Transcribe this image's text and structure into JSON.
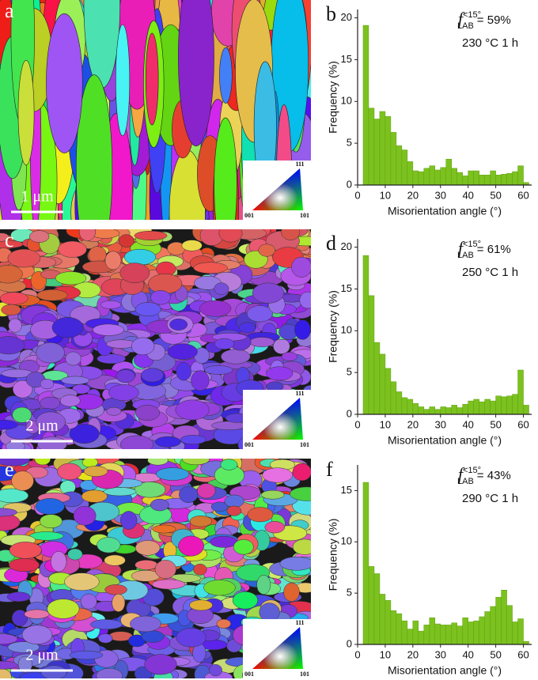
{
  "panels": [
    {
      "label": "a",
      "scale_bar": "1 μm",
      "legend": {
        "top": "111",
        "left": "001",
        "right": "101"
      }
    },
    {
      "label": "c",
      "scale_bar": "2 μm",
      "legend": {
        "top": "111",
        "left": "001",
        "right": "101"
      }
    },
    {
      "label": "e",
      "scale_bar": "2 μm",
      "legend": {
        "top": "111",
        "left": "001",
        "right": "101"
      }
    }
  ],
  "chart_data": [
    {
      "type": "histogram",
      "panel_label": "b",
      "annotation_symbol": "f",
      "annotation_sub": "LAB",
      "annotation_sup": "<15°",
      "annotation_value": "= 59%",
      "condition": "230 °C 1 h",
      "xlabel": "Misorientation angle (°)",
      "ylabel": "Frequency (%)",
      "color": "#7cc21f",
      "bins": [
        2,
        4,
        6,
        8,
        10,
        12,
        14,
        16,
        18,
        20,
        22,
        24,
        26,
        28,
        30,
        32,
        34,
        36,
        38,
        40,
        42,
        44,
        46,
        48,
        50,
        52,
        54,
        56,
        58,
        60,
        62
      ],
      "values": [
        19.1,
        9.2,
        7.9,
        8.8,
        8.2,
        6.3,
        4.7,
        4.2,
        2.8,
        1.7,
        1.6,
        2.0,
        2.3,
        1.8,
        2.1,
        3.1,
        2.0,
        1.5,
        1.1,
        1.7,
        1.7,
        1.2,
        1.2,
        1.7,
        1.2,
        1.3,
        1.4,
        1.6,
        2.3,
        0.3
      ],
      "xlim": [
        0,
        63
      ],
      "xticks": [
        0,
        10,
        20,
        30,
        40,
        50,
        60
      ],
      "ylim": [
        0,
        21
      ],
      "yticks": [
        0,
        5,
        10,
        15,
        20
      ]
    },
    {
      "type": "histogram",
      "panel_label": "d",
      "annotation_symbol": "f",
      "annotation_sub": "LAB",
      "annotation_sup": "<15°",
      "annotation_value": "= 61%",
      "condition": "250 °C 1 h",
      "xlabel": "Misorientation angle (°)",
      "ylabel": "Frequency (%)",
      "color": "#7cc21f",
      "bins": [
        2,
        4,
        6,
        8,
        10,
        12,
        14,
        16,
        18,
        20,
        22,
        24,
        26,
        28,
        30,
        32,
        34,
        36,
        38,
        40,
        42,
        44,
        46,
        48,
        50,
        52,
        54,
        56,
        58,
        60,
        62
      ],
      "values": [
        19.0,
        14.2,
        8.6,
        7.2,
        5.5,
        3.9,
        2.7,
        2.0,
        1.8,
        1.3,
        0.9,
        0.6,
        0.9,
        0.6,
        0.9,
        0.8,
        1.1,
        0.8,
        1.2,
        1.6,
        1.8,
        1.5,
        1.8,
        1.6,
        2.2,
        2.1,
        2.2,
        2.4,
        5.3,
        1.1
      ],
      "xlim": [
        0,
        63
      ],
      "xticks": [
        0,
        10,
        20,
        30,
        40,
        50,
        60
      ],
      "ylim": [
        0,
        21
      ],
      "yticks": [
        0,
        5,
        10,
        15,
        20
      ]
    },
    {
      "type": "histogram",
      "panel_label": "f",
      "annotation_symbol": "f",
      "annotation_sub": "LAB",
      "annotation_sup": "<15°",
      "annotation_value": "= 43%",
      "condition": "290 °C 1 h",
      "xlabel": "Misorientation angle (°)",
      "ylabel": "Frequency (%)",
      "color": "#7cc21f",
      "bins": [
        2,
        4,
        6,
        8,
        10,
        12,
        14,
        16,
        18,
        20,
        22,
        24,
        26,
        28,
        30,
        32,
        34,
        36,
        38,
        40,
        42,
        44,
        46,
        48,
        50,
        52,
        54,
        56,
        58,
        60,
        62
      ],
      "values": [
        15.8,
        7.6,
        6.9,
        4.9,
        4.3,
        3.3,
        3.0,
        2.3,
        1.5,
        2.3,
        1.3,
        1.9,
        2.6,
        2.0,
        1.9,
        1.9,
        2.1,
        1.8,
        2.6,
        2.2,
        2.3,
        2.7,
        3.2,
        3.7,
        4.6,
        5.3,
        3.8,
        2.2,
        2.5,
        0.3
      ],
      "xlim": [
        0,
        63
      ],
      "xticks": [
        0,
        10,
        20,
        30,
        40,
        50,
        60
      ],
      "ylim": [
        0,
        17.5
      ],
      "yticks": [
        0,
        5,
        10,
        15
      ]
    }
  ]
}
